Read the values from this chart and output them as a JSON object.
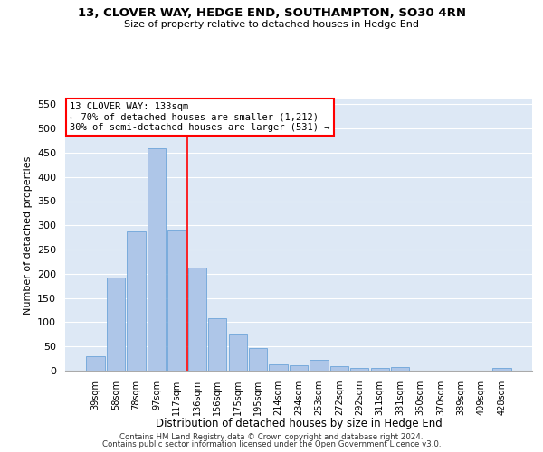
{
  "title1": "13, CLOVER WAY, HEDGE END, SOUTHAMPTON, SO30 4RN",
  "title2": "Size of property relative to detached houses in Hedge End",
  "xlabel": "Distribution of detached houses by size in Hedge End",
  "ylabel": "Number of detached properties",
  "categories": [
    "39sqm",
    "58sqm",
    "78sqm",
    "97sqm",
    "117sqm",
    "136sqm",
    "156sqm",
    "175sqm",
    "195sqm",
    "214sqm",
    "234sqm",
    "253sqm",
    "272sqm",
    "292sqm",
    "311sqm",
    "331sqm",
    "350sqm",
    "370sqm",
    "389sqm",
    "409sqm",
    "428sqm"
  ],
  "values": [
    30,
    192,
    287,
    460,
    292,
    213,
    109,
    74,
    47,
    13,
    12,
    22,
    10,
    5,
    5,
    7,
    0,
    0,
    0,
    0,
    5
  ],
  "bar_color": "#aec6e8",
  "bar_edgecolor": "#5b9bd5",
  "bg_color": "#dde8f5",
  "vline_color": "red",
  "annotation_line1": "13 CLOVER WAY: 133sqm",
  "annotation_line2": "← 70% of detached houses are smaller (1,212)",
  "annotation_line3": "30% of semi-detached houses are larger (531) →",
  "ylim": [
    0,
    560
  ],
  "yticks": [
    0,
    50,
    100,
    150,
    200,
    250,
    300,
    350,
    400,
    450,
    500,
    550
  ],
  "footer1": "Contains HM Land Registry data © Crown copyright and database right 2024.",
  "footer2": "Contains public sector information licensed under the Open Government Licence v3.0."
}
